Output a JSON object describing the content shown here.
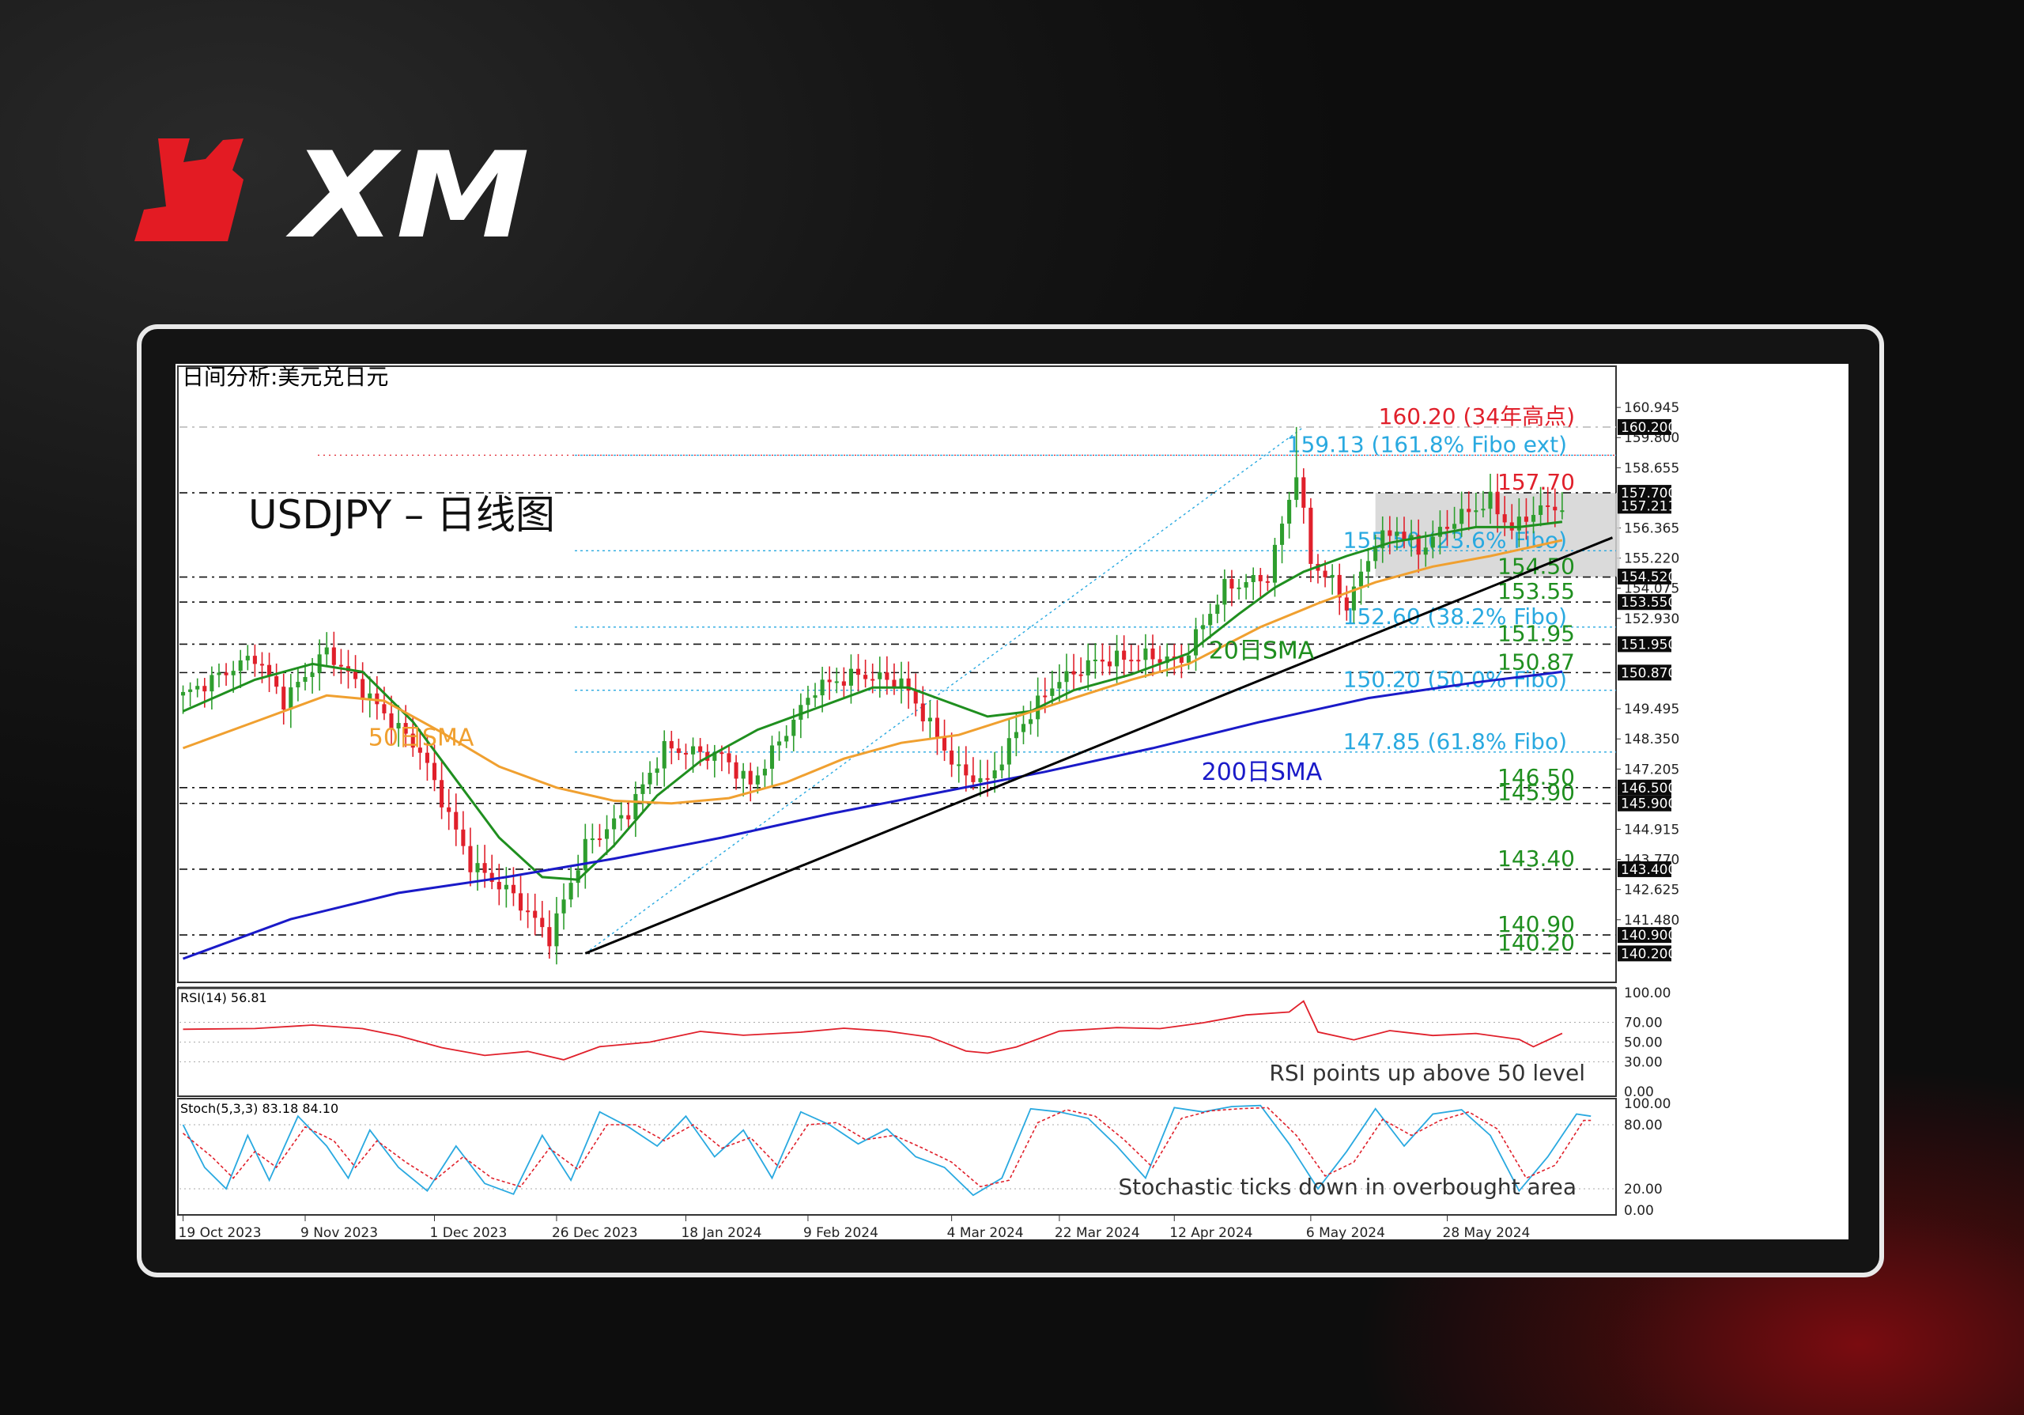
{
  "brand": {
    "name": "XM"
  },
  "chart_title": "日间分析:美元兑日元",
  "chart_heading": "USDJPY – 日线图",
  "colors": {
    "bull": "#2e9e2e",
    "bear": "#e0202b",
    "sma20": "#1f8f1f",
    "sma50": "#f0a030",
    "sma200": "#1a1ac8",
    "fibo": "#29a9e0",
    "level": "#1f8f1f",
    "high": "#e0202b",
    "rsi": "#e0202b",
    "stoch_k": "#29a9e0",
    "stoch_d": "#e0202b",
    "trend": "#000000"
  },
  "chart_data": {
    "type": "candlestick",
    "symbol": "USDJPY",
    "timeframe": "Daily",
    "x_tick_labels": [
      "19 Oct 2023",
      "9 Nov 2023",
      "1 Dec 2023",
      "26 Dec 2023",
      "18 Jan 2024",
      "9 Feb 2024",
      "4 Mar 2024",
      "22 Mar 2024",
      "12 Apr 2024",
      "6 May 2024",
      "28 May 2024"
    ],
    "y_tick_labels": [
      "160.945",
      "159.800",
      "158.655",
      "156.365",
      "155.220",
      "154.075",
      "152.930",
      "149.495",
      "148.350",
      "147.205",
      "144.915",
      "143.770",
      "142.625",
      "141.480"
    ],
    "ylim": [
      139.1,
      161.4
    ],
    "price_boxes": [
      "160.200",
      "157.700",
      "157.211",
      "154.520",
      "153.550",
      "151.950",
      "150.870",
      "146.500",
      "145.900",
      "143.400",
      "140.900",
      "140.200"
    ],
    "candle_keypoints": [
      [
        0,
        150.0
      ],
      [
        10,
        151.5
      ],
      [
        14,
        149.8
      ],
      [
        20,
        151.7
      ],
      [
        28,
        149.3
      ],
      [
        33,
        147.9
      ],
      [
        40,
        143.6
      ],
      [
        46,
        142.4
      ],
      [
        51,
        140.8
      ],
      [
        56,
        144.3
      ],
      [
        62,
        145.6
      ],
      [
        67,
        148.0
      ],
      [
        75,
        147.7
      ],
      [
        79,
        146.6
      ],
      [
        88,
        150.3
      ],
      [
        94,
        150.8
      ],
      [
        100,
        150.5
      ],
      [
        103,
        149.3
      ],
      [
        108,
        147.1
      ],
      [
        112,
        146.7
      ],
      [
        116,
        148.6
      ],
      [
        121,
        150.4
      ],
      [
        127,
        151.3
      ],
      [
        134,
        151.5
      ],
      [
        139,
        151.3
      ],
      [
        145,
        154.1
      ],
      [
        151,
        154.5
      ],
      [
        155,
        158.5
      ],
      [
        157,
        155.1
      ],
      [
        160,
        154.3
      ],
      [
        162,
        153.4
      ],
      [
        166,
        155.8
      ],
      [
        169,
        156.3
      ],
      [
        172,
        155.5
      ],
      [
        177,
        156.7
      ],
      [
        182,
        157.4
      ],
      [
        185,
        156.3
      ],
      [
        188,
        157.0
      ],
      [
        192,
        157.2
      ]
    ],
    "series": [
      {
        "name": "20日SMA",
        "values": [
          [
            0,
            149.4
          ],
          [
            10,
            150.6
          ],
          [
            18,
            151.2
          ],
          [
            25,
            150.9
          ],
          [
            32,
            149.0
          ],
          [
            38,
            146.8
          ],
          [
            44,
            144.6
          ],
          [
            50,
            143.1
          ],
          [
            55,
            143.0
          ],
          [
            60,
            144.3
          ],
          [
            66,
            146.2
          ],
          [
            72,
            147.5
          ],
          [
            80,
            148.7
          ],
          [
            88,
            149.5
          ],
          [
            96,
            150.3
          ],
          [
            101,
            150.3
          ],
          [
            106,
            149.8
          ],
          [
            112,
            149.2
          ],
          [
            118,
            149.4
          ],
          [
            124,
            150.2
          ],
          [
            132,
            150.8
          ],
          [
            140,
            151.6
          ],
          [
            147,
            153.1
          ],
          [
            152,
            154.1
          ],
          [
            156,
            154.7
          ],
          [
            162,
            155.3
          ],
          [
            168,
            155.8
          ],
          [
            174,
            156.1
          ],
          [
            180,
            156.4
          ],
          [
            186,
            156.4
          ],
          [
            192,
            156.6
          ]
        ]
      },
      {
        "name": "50日SMA",
        "values": [
          [
            0,
            148.0
          ],
          [
            10,
            149.0
          ],
          [
            20,
            150.0
          ],
          [
            28,
            149.8
          ],
          [
            36,
            148.6
          ],
          [
            44,
            147.3
          ],
          [
            52,
            146.5
          ],
          [
            60,
            146.0
          ],
          [
            68,
            145.9
          ],
          [
            76,
            146.1
          ],
          [
            84,
            146.7
          ],
          [
            92,
            147.6
          ],
          [
            100,
            148.2
          ],
          [
            108,
            148.5
          ],
          [
            116,
            149.2
          ],
          [
            124,
            149.9
          ],
          [
            132,
            150.6
          ],
          [
            140,
            151.2
          ],
          [
            150,
            152.6
          ],
          [
            158,
            153.5
          ],
          [
            166,
            154.3
          ],
          [
            174,
            154.9
          ],
          [
            182,
            155.3
          ],
          [
            192,
            155.9
          ]
        ]
      },
      {
        "name": "200日SMA",
        "values": [
          [
            0,
            140.0
          ],
          [
            15,
            141.5
          ],
          [
            30,
            142.5
          ],
          [
            45,
            143.1
          ],
          [
            60,
            143.8
          ],
          [
            75,
            144.6
          ],
          [
            90,
            145.5
          ],
          [
            105,
            146.3
          ],
          [
            120,
            147.1
          ],
          [
            135,
            148.0
          ],
          [
            150,
            149.0
          ],
          [
            165,
            149.9
          ],
          [
            180,
            150.5
          ],
          [
            192,
            150.9
          ]
        ]
      }
    ],
    "trendline": [
      [
        56,
        140.2
      ],
      [
        199,
        156.0
      ]
    ],
    "levels": [
      {
        "label": "160.20 (34年高点)",
        "value": 160.2,
        "kind": "high"
      },
      {
        "label": "159.13 (161.8% Fibo ext)",
        "value": 159.13,
        "kind": "fibo"
      },
      {
        "label": "157.70",
        "value": 157.7,
        "kind": "res"
      },
      {
        "label": "155.50 (23.6% Fibo)",
        "value": 155.5,
        "kind": "fibo"
      },
      {
        "label": "154.50",
        "value": 154.5,
        "kind": "level"
      },
      {
        "label": "153.55",
        "value": 153.55,
        "kind": "level"
      },
      {
        "label": "152.60 (38.2% Fibo)",
        "value": 152.6,
        "kind": "fibo"
      },
      {
        "label": "151.95",
        "value": 151.95,
        "kind": "level"
      },
      {
        "label": "150.87",
        "value": 150.87,
        "kind": "level"
      },
      {
        "label": "150.20 (50.0% Fibo)",
        "value": 150.2,
        "kind": "fibo"
      },
      {
        "label": "147.85 (61.8% Fibo)",
        "value": 147.85,
        "kind": "fibo"
      },
      {
        "label": "146.50",
        "value": 146.5,
        "kind": "level"
      },
      {
        "label": "145.90",
        "value": 145.9,
        "kind": "level"
      },
      {
        "label": "143.40",
        "value": 143.4,
        "kind": "level"
      },
      {
        "label": "140.90",
        "value": 140.9,
        "kind": "level"
      },
      {
        "label": "140.20",
        "value": 140.2,
        "kind": "level"
      }
    ],
    "range_box": {
      "from": 166,
      "to": 200,
      "low": 154.5,
      "high": 157.7
    },
    "sma_labels": [
      "50日SMA",
      "20日SMA",
      "200日SMA"
    ],
    "rsi": {
      "label": "RSI(14) 56.81",
      "ticks": [
        "100.00",
        "70.00",
        "50.00",
        "30.00",
        "0.00"
      ],
      "note": "RSI points up above 50 level",
      "values": [
        [
          0,
          63
        ],
        [
          10,
          62
        ],
        [
          18,
          67
        ],
        [
          25,
          62
        ],
        [
          30,
          56
        ],
        [
          36,
          44
        ],
        [
          42,
          36
        ],
        [
          48,
          40
        ],
        [
          53,
          34
        ],
        [
          58,
          44
        ],
        [
          65,
          52
        ],
        [
          72,
          60
        ],
        [
          78,
          56
        ],
        [
          86,
          62
        ],
        [
          92,
          66
        ],
        [
          98,
          63
        ],
        [
          104,
          57
        ],
        [
          109,
          40
        ],
        [
          112,
          38
        ],
        [
          116,
          47
        ],
        [
          122,
          63
        ],
        [
          130,
          64
        ],
        [
          136,
          63
        ],
        [
          142,
          69
        ],
        [
          148,
          77
        ],
        [
          154,
          80
        ],
        [
          156,
          90
        ],
        [
          158,
          62
        ],
        [
          163,
          52
        ],
        [
          168,
          60
        ],
        [
          174,
          55
        ],
        [
          180,
          57
        ],
        [
          186,
          51
        ],
        [
          188,
          47
        ],
        [
          192,
          57
        ]
      ]
    },
    "stoch": {
      "label": "Stoch(5,3,3) 83.18 84.10",
      "ticks": [
        "100.00",
        "80.00",
        "20.00",
        "0.00"
      ],
      "note": "Stochastic ticks down in overbought area",
      "k_values": [
        [
          0,
          80
        ],
        [
          3,
          40
        ],
        [
          6,
          20
        ],
        [
          9,
          70
        ],
        [
          12,
          28
        ],
        [
          16,
          88
        ],
        [
          20,
          60
        ],
        [
          23,
          30
        ],
        [
          26,
          75
        ],
        [
          30,
          40
        ],
        [
          34,
          18
        ],
        [
          38,
          60
        ],
        [
          42,
          25
        ],
        [
          46,
          15
        ],
        [
          50,
          70
        ],
        [
          54,
          28
        ],
        [
          58,
          92
        ],
        [
          62,
          78
        ],
        [
          66,
          60
        ],
        [
          70,
          88
        ],
        [
          74,
          50
        ],
        [
          78,
          75
        ],
        [
          82,
          30
        ],
        [
          86,
          92
        ],
        [
          90,
          80
        ],
        [
          94,
          62
        ],
        [
          98,
          76
        ],
        [
          102,
          50
        ],
        [
          106,
          40
        ],
        [
          110,
          14
        ],
        [
          114,
          30
        ],
        [
          118,
          95
        ],
        [
          122,
          92
        ],
        [
          126,
          86
        ],
        [
          130,
          60
        ],
        [
          134,
          30
        ],
        [
          138,
          96
        ],
        [
          142,
          92
        ],
        [
          146,
          97
        ],
        [
          150,
          98
        ],
        [
          154,
          62
        ],
        [
          158,
          20
        ],
        [
          162,
          55
        ],
        [
          166,
          95
        ],
        [
          170,
          60
        ],
        [
          174,
          90
        ],
        [
          178,
          94
        ],
        [
          182,
          70
        ],
        [
          186,
          18
        ],
        [
          190,
          50
        ],
        [
          194,
          90
        ],
        [
          196,
          88
        ]
      ],
      "d_values": [
        [
          0,
          72
        ],
        [
          4,
          50
        ],
        [
          7,
          30
        ],
        [
          10,
          55
        ],
        [
          13,
          40
        ],
        [
          17,
          78
        ],
        [
          21,
          65
        ],
        [
          24,
          40
        ],
        [
          27,
          65
        ],
        [
          31,
          45
        ],
        [
          35,
          28
        ],
        [
          39,
          50
        ],
        [
          43,
          30
        ],
        [
          47,
          22
        ],
        [
          51,
          58
        ],
        [
          55,
          38
        ],
        [
          59,
          80
        ],
        [
          63,
          80
        ],
        [
          67,
          65
        ],
        [
          71,
          80
        ],
        [
          75,
          58
        ],
        [
          79,
          68
        ],
        [
          83,
          40
        ],
        [
          87,
          80
        ],
        [
          91,
          82
        ],
        [
          95,
          66
        ],
        [
          99,
          70
        ],
        [
          103,
          58
        ],
        [
          107,
          45
        ],
        [
          111,
          22
        ],
        [
          115,
          28
        ],
        [
          119,
          82
        ],
        [
          123,
          94
        ],
        [
          127,
          88
        ],
        [
          131,
          66
        ],
        [
          135,
          40
        ],
        [
          139,
          86
        ],
        [
          143,
          93
        ],
        [
          147,
          95
        ],
        [
          151,
          96
        ],
        [
          155,
          70
        ],
        [
          159,
          32
        ],
        [
          163,
          45
        ],
        [
          167,
          85
        ],
        [
          171,
          70
        ],
        [
          175,
          84
        ],
        [
          179,
          92
        ],
        [
          183,
          76
        ],
        [
          187,
          30
        ],
        [
          191,
          42
        ],
        [
          195,
          84
        ],
        [
          196,
          84
        ]
      ]
    }
  }
}
